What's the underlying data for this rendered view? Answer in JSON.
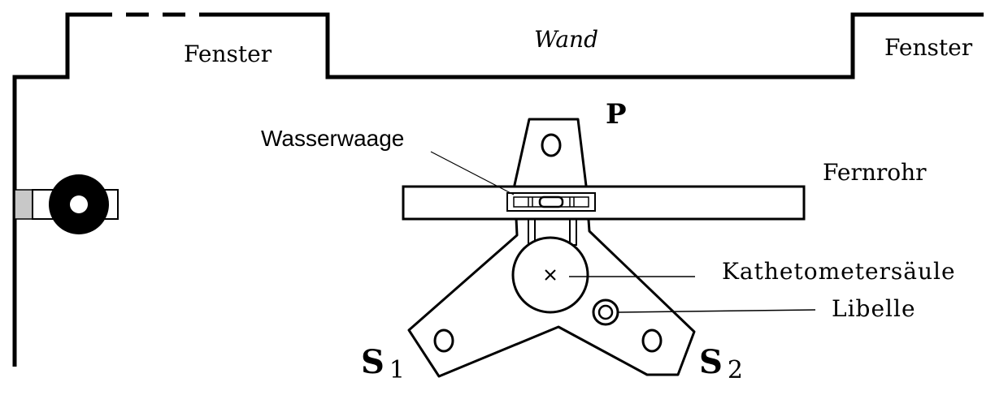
{
  "labels": {
    "fenster_left": "Fenster",
    "wand": "Wand",
    "fenster_right": "Fenster",
    "p": "P",
    "wasserwaage": "Wasserwaage",
    "fernrohr": "Fernrohr",
    "kathetometersaeule": "Kathetometersäule",
    "libelle": "Libelle",
    "s1_letter": "S",
    "s1_index": "1",
    "s2_letter": "S",
    "s2_index": "2"
  },
  "colors": {
    "line": "#000000",
    "background": "#ffffff",
    "mount_gray": "#c8c8c8"
  }
}
